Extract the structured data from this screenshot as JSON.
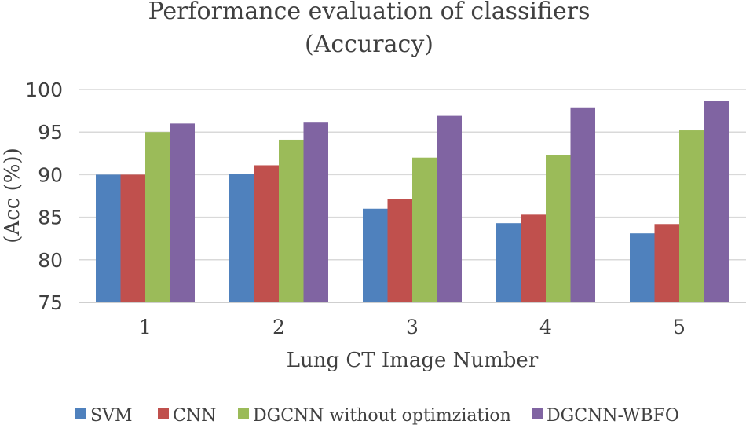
{
  "chart_data": {
    "type": "bar",
    "title": "Performance evaluation of classifiers",
    "subtitle": "(Accuracy)",
    "xlabel": "Lung CT Image Number",
    "ylabel": "(Acc (%))",
    "categories": [
      "1",
      "2",
      "3",
      "4",
      "5"
    ],
    "ylim": [
      75,
      100
    ],
    "yticks": [
      75,
      80,
      85,
      90,
      95,
      100
    ],
    "grid": true,
    "legend_position": "bottom",
    "series": [
      {
        "name": "SVM",
        "color": "#4f81bd",
        "values": [
          90.0,
          90.1,
          86.0,
          84.3,
          83.1
        ]
      },
      {
        "name": "CNN",
        "color": "#c0504d",
        "values": [
          90.0,
          91.1,
          87.1,
          85.3,
          84.2
        ]
      },
      {
        "name": "DGCNN without optimziation",
        "color": "#9bbb59",
        "values": [
          95.0,
          94.1,
          92.0,
          92.3,
          95.2
        ]
      },
      {
        "name": "DGCNN-WBFO",
        "color": "#8064a2",
        "values": [
          96.0,
          96.2,
          96.9,
          97.9,
          98.7
        ]
      }
    ]
  }
}
